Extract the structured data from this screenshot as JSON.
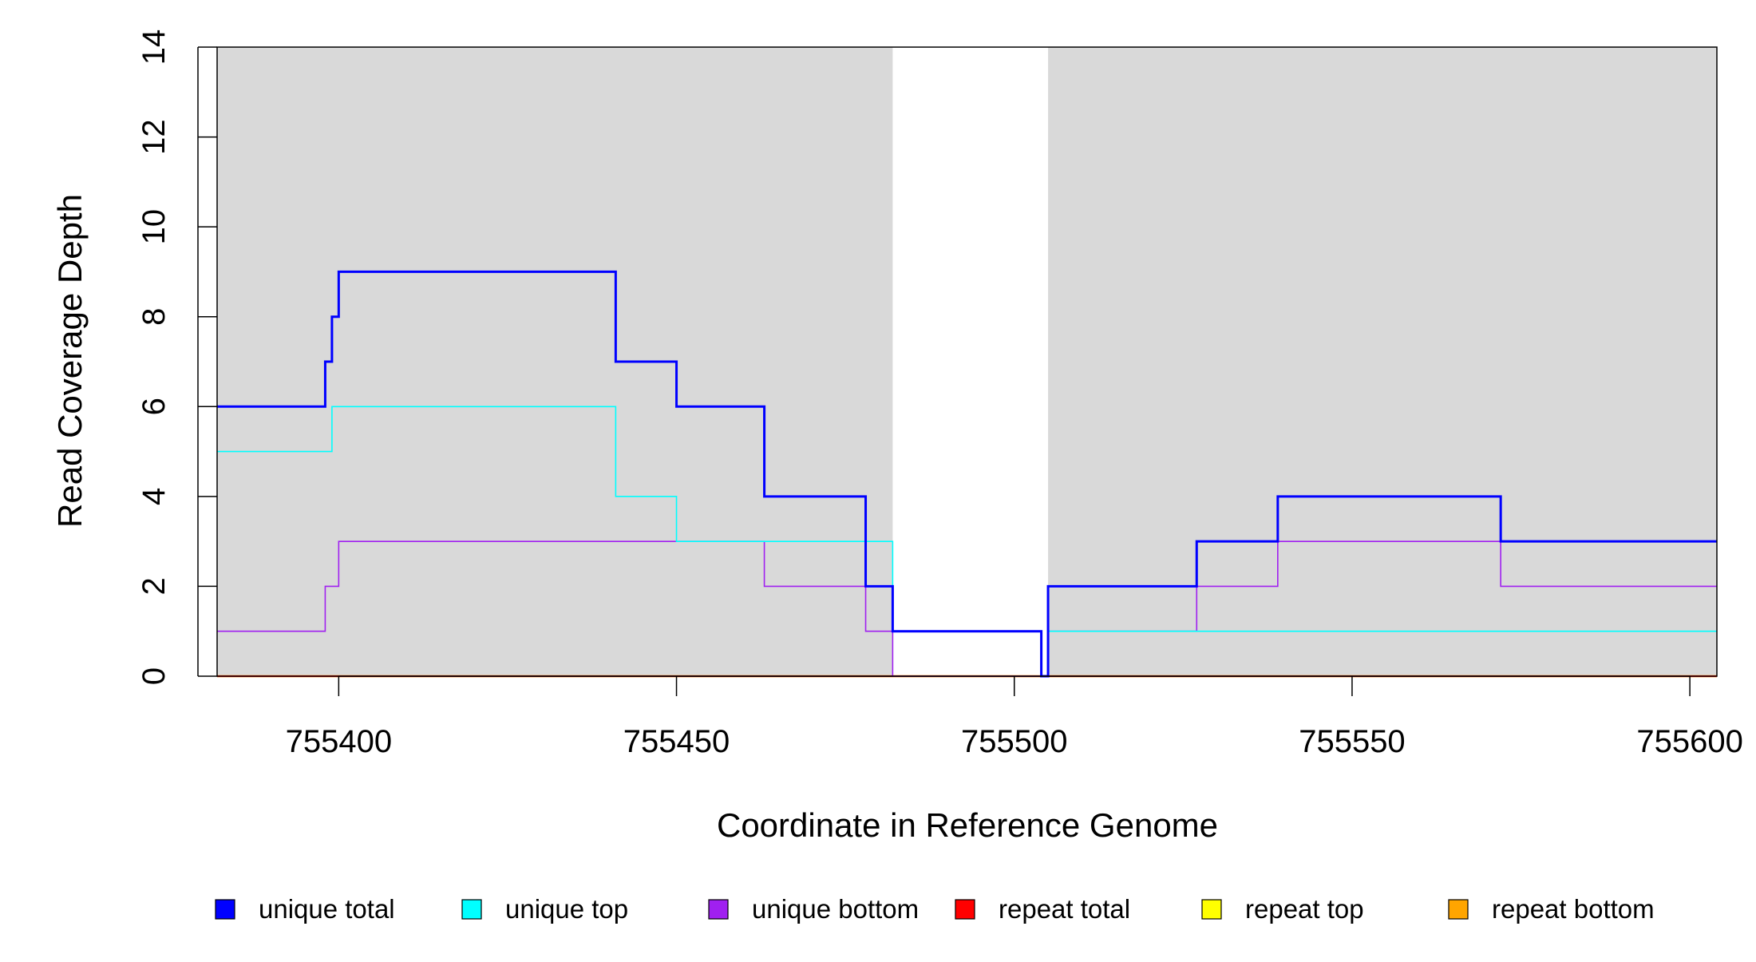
{
  "chart_data": {
    "type": "line",
    "step": true,
    "xlabel": "Coordinate in Reference Genome",
    "ylabel": "Read Coverage Depth",
    "xlim": [
      755382,
      755604
    ],
    "ylim": [
      0,
      14
    ],
    "xticks": [
      755400,
      755450,
      755500,
      755550,
      755600
    ],
    "yticks": [
      0,
      2,
      4,
      6,
      8,
      10,
      12,
      14
    ],
    "background_color": "#d9d9d9",
    "unshaded_regions": [
      [
        755482,
        755505
      ]
    ],
    "legend_position": "bottom",
    "legend": [
      {
        "label": "unique total",
        "color": "#0000ff"
      },
      {
        "label": "unique top",
        "color": "#00ffff"
      },
      {
        "label": "unique bottom",
        "color": "#a020f0"
      },
      {
        "label": "repeat total",
        "color": "#ff0000"
      },
      {
        "label": "repeat top",
        "color": "#ffff00"
      },
      {
        "label": "repeat bottom",
        "color": "#ffa500"
      }
    ],
    "series": [
      {
        "name": "unique total",
        "color": "#0000ff",
        "x": [
          755382,
          755398,
          755399,
          755400,
          755441,
          755450,
          755463,
          755478,
          755482,
          755504,
          755505,
          755527,
          755539,
          755572,
          755604
        ],
        "y": [
          6,
          7,
          8,
          9,
          7,
          6,
          4,
          2,
          1,
          0,
          2,
          3,
          4,
          3,
          3
        ]
      },
      {
        "name": "unique top",
        "color": "#00ffff",
        "x": [
          755382,
          755399,
          755441,
          755450,
          755482,
          755504,
          755505,
          755527,
          755604
        ],
        "y": [
          5,
          6,
          4,
          3,
          1,
          0,
          1,
          1,
          1
        ]
      },
      {
        "name": "unique bottom",
        "color": "#a020f0",
        "x": [
          755382,
          755398,
          755400,
          755463,
          755478,
          755482,
          755505,
          755527,
          755539,
          755572,
          755604
        ],
        "y": [
          1,
          2,
          3,
          2,
          1,
          0,
          1,
          2,
          3,
          2,
          2
        ]
      },
      {
        "name": "repeat total",
        "color": "#ff0000",
        "x": [
          755382,
          755604
        ],
        "y": [
          0,
          0
        ]
      },
      {
        "name": "repeat top",
        "color": "#ffff00",
        "x": [
          755382,
          755604
        ],
        "y": [
          0,
          0
        ]
      },
      {
        "name": "repeat bottom",
        "color": "#ffa500",
        "x": [
          755382,
          755604
        ],
        "y": [
          0,
          0
        ]
      }
    ]
  }
}
